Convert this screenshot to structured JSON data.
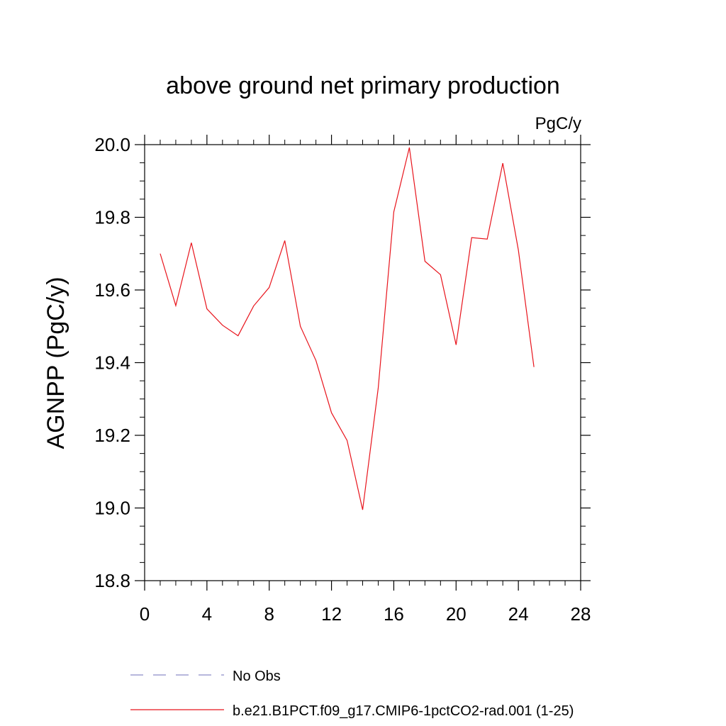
{
  "chart_data": {
    "type": "line",
    "title": "above ground net primary production",
    "units_label": "PgC/y",
    "ylabel": "AGNPP  (PgC/y)",
    "xlabel": "",
    "xlim": [
      0,
      28
    ],
    "ylim": [
      18.8,
      20.0
    ],
    "xticks": [
      0,
      4,
      8,
      12,
      16,
      20,
      24,
      28
    ],
    "yticks": [
      18.8,
      19.0,
      19.2,
      19.4,
      19.6,
      19.8,
      20.0
    ],
    "xtick_labels": [
      "0",
      "4",
      "8",
      "12",
      "16",
      "20",
      "24",
      "28"
    ],
    "ytick_labels": [
      "18.8",
      "19.0",
      "19.2",
      "19.4",
      "19.6",
      "19.8",
      "20.0"
    ],
    "grid": false,
    "legend_position": "bottom",
    "series": [
      {
        "name": "b.e21.B1PCT.f09_g17.CMIP6-1pctCO2-rad.001 (1-25)",
        "color": "#e8141c",
        "style": "solid",
        "x": [
          1,
          2,
          3,
          4,
          5,
          6,
          7,
          8,
          9,
          10,
          11,
          12,
          13,
          14,
          15,
          16,
          17,
          18,
          19,
          20,
          21,
          22,
          23,
          24,
          25
        ],
        "y": [
          19.7,
          19.557,
          19.73,
          19.548,
          19.503,
          19.474,
          19.556,
          19.607,
          19.736,
          19.5,
          19.406,
          19.262,
          19.186,
          18.995,
          19.33,
          19.815,
          19.992,
          19.679,
          19.642,
          19.449,
          19.744,
          19.74,
          19.949,
          19.71,
          19.388
        ]
      }
    ],
    "legend": [
      {
        "label": "No Obs",
        "color": "#8c8cc8",
        "style": "dashed"
      },
      {
        "label": "b.e21.B1PCT.f09_g17.CMIP6-1pctCO2-rad.001 (1-25)",
        "color": "#e8141c",
        "style": "solid"
      }
    ]
  }
}
